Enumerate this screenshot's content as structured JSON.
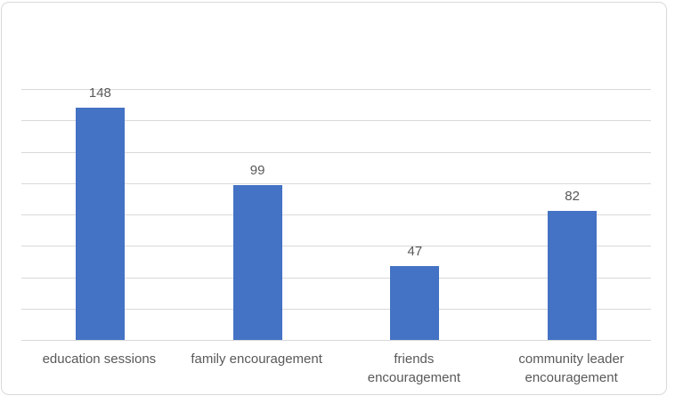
{
  "chart_data": {
    "type": "bar",
    "title": "",
    "xlabel": "",
    "ylabel": "",
    "categories": [
      "education sessions",
      "family encouragement",
      "friends encouragement",
      "community leader encouragement"
    ],
    "category_label_lines": [
      [
        "education sessions"
      ],
      [
        "family encouragement"
      ],
      [
        "friends",
        "encouragement"
      ],
      [
        "community leader",
        "encouragement"
      ]
    ],
    "values": [
      148,
      99,
      47,
      82
    ],
    "data_labels": [
      "148",
      "99",
      "47",
      "82"
    ],
    "ylim": [
      0,
      160
    ],
    "gridline_step": 20,
    "grid": true,
    "legend": false,
    "y_axis_tick_labels_visible": false,
    "colors": {
      "bar": "#4472c4",
      "gridline": "#d9d9d9",
      "axis_line": "#d9d9d9",
      "text": "#595959",
      "chart_border": "#d9d9d9",
      "background": "#ffffff"
    }
  }
}
